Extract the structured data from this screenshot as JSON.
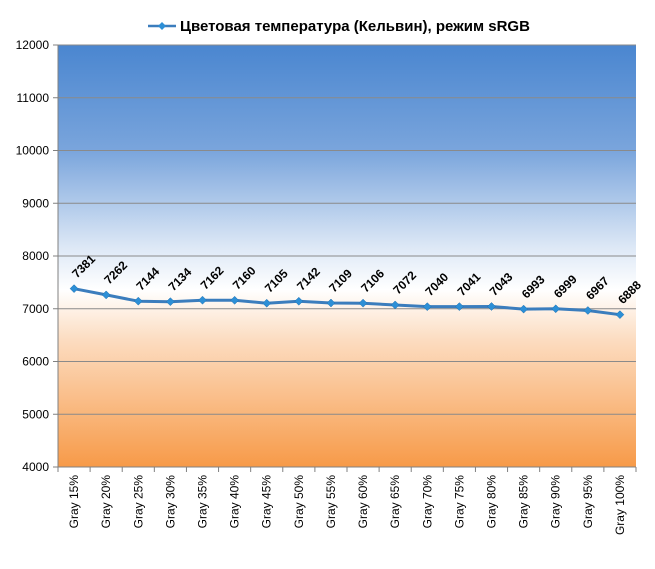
{
  "chart_data": {
    "type": "line",
    "categories": [
      "Gray 15%",
      "Gray 20%",
      "Gray 25%",
      "Gray 30%",
      "Gray 35%",
      "Gray 40%",
      "Gray 45%",
      "Gray 50%",
      "Gray 55%",
      "Gray 60%",
      "Gray 65%",
      "Gray 70%",
      "Gray 75%",
      "Gray 80%",
      "Gray 85%",
      "Gray 90%",
      "Gray 95%",
      "Gray 100%"
    ],
    "series": [
      {
        "name": "Цветовая температура (Кельвин), режим sRGB",
        "values": [
          7381,
          7262,
          7144,
          7134,
          7162,
          7160,
          7105,
          7142,
          7109,
          7106,
          7072,
          7040,
          7041,
          7043,
          6993,
          6999,
          6967,
          6888
        ],
        "color": "#3b7dbd"
      }
    ],
    "ylim": [
      4000,
      12000
    ],
    "yticks": [
      4000,
      5000,
      6000,
      7000,
      8000,
      9000,
      10000,
      11000,
      12000
    ],
    "grid": "horizontal",
    "legend": "top",
    "data_labels": true,
    "background_colors": {
      "top": "#4a86d0",
      "middle": "#ffffff",
      "bottom": "#f79a48"
    }
  }
}
